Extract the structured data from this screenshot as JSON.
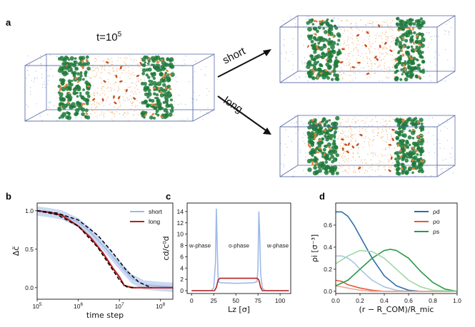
{
  "panel_a": {
    "letter": "a",
    "time_label": "t=10",
    "time_exp": "5",
    "arrow_top_label": "short",
    "arrow_bottom_label": "long"
  },
  "colors": {
    "box_edge": "#5a6ca8",
    "green": "#1f7a3a",
    "orange": "#e0833a",
    "red": "#b82020",
    "light_blue": "#9fb9e8",
    "dark_blue": "#2a6fa8",
    "dot_blue": "#7f9bd0",
    "dot_orange": "#f0a860"
  },
  "chart_data": [
    {
      "id": "b",
      "letter": "b",
      "type": "line",
      "xlabel": "time step",
      "ylabel": "Δc̃",
      "xscale": "log",
      "xlim": [
        100000,
        200000000
      ],
      "ylim": [
        -0.15,
        1.1
      ],
      "xticks": [
        100000,
        1000000,
        10000000,
        100000000
      ],
      "xtick_labels": [
        "10",
        "10",
        "10",
        "10"
      ],
      "xtick_exps": [
        "5",
        "6",
        "7",
        "8"
      ],
      "yticks": [
        0.0,
        0.5,
        1.0
      ],
      "ytick_labels": [
        "0.0",
        "0.5",
        "1.0"
      ],
      "legend": {
        "placement": "top-right",
        "entries": [
          "short",
          "long"
        ]
      },
      "series": [
        {
          "name": "short",
          "color": "#9fb9e8",
          "x": [
            100000,
            200000,
            400000,
            1000000,
            2000000,
            4000000,
            7000000,
            10000000,
            20000000,
            40000000,
            100000000,
            200000000
          ],
          "y": [
            1.0,
            0.98,
            0.95,
            0.85,
            0.72,
            0.55,
            0.4,
            0.3,
            0.12,
            0.04,
            0.02,
            0.01
          ]
        },
        {
          "name": "long",
          "color": "#b82020",
          "x": [
            100000,
            200000,
            400000,
            1000000,
            2000000,
            4000000,
            7000000,
            10000000,
            13000000,
            20000000,
            40000000,
            100000000,
            200000000
          ],
          "y": [
            1.0,
            0.98,
            0.94,
            0.8,
            0.65,
            0.45,
            0.25,
            0.14,
            0.03,
            0.0,
            0.0,
            0.0,
            0.0
          ]
        },
        {
          "name": "fit-short",
          "color": "#000000",
          "dashed": true,
          "x": [
            100000,
            300000,
            1000000,
            3000000,
            7000000,
            15000000,
            30000000,
            60000000
          ],
          "y": [
            1.0,
            0.97,
            0.88,
            0.68,
            0.45,
            0.22,
            0.07,
            0.0
          ]
        },
        {
          "name": "fit-long",
          "color": "#000000",
          "dashed": true,
          "x": [
            100000,
            300000,
            1000000,
            3000000,
            6000000,
            10000000,
            15000000,
            25000000
          ],
          "y": [
            1.0,
            0.95,
            0.8,
            0.52,
            0.28,
            0.1,
            0.01,
            0.0
          ]
        }
      ]
    },
    {
      "id": "c",
      "letter": "c",
      "type": "line",
      "xlabel": "Lz [σ]",
      "ylabel": "cd/c⁰d",
      "xlim": [
        -5,
        112
      ],
      "ylim": [
        -0.5,
        15.5
      ],
      "xticks": [
        0,
        25,
        50,
        75,
        100
      ],
      "xtick_labels": [
        "0",
        "25",
        "50",
        "75",
        "100"
      ],
      "yticks": [
        0,
        2,
        4,
        6,
        8,
        10,
        12,
        14
      ],
      "ytick_labels": [
        "0",
        "2",
        "4",
        "6",
        "8",
        "10",
        "12",
        "14"
      ],
      "annotations": [
        "w-phase",
        "o-phase",
        "w-phase"
      ],
      "series": [
        {
          "name": "light",
          "color": "#9fb9e8",
          "x": [
            0,
            22,
            25,
            27,
            28,
            29,
            30,
            31,
            33,
            50,
            70,
            74,
            75,
            76,
            77,
            78,
            80,
            83,
            110
          ],
          "y": [
            0,
            0,
            0.5,
            5,
            14.5,
            8,
            2,
            1.5,
            1.4,
            1.3,
            1.4,
            1.6,
            4,
            14,
            10,
            3,
            0.5,
            0,
            0
          ]
        },
        {
          "name": "dark",
          "color": "#b82020",
          "x": [
            0,
            26,
            28,
            30,
            32,
            50,
            74,
            76,
            78,
            80,
            110
          ],
          "y": [
            0,
            0,
            0.6,
            1.9,
            2.2,
            2.2,
            2.2,
            1.9,
            0.6,
            0,
            0
          ]
        }
      ]
    },
    {
      "id": "d",
      "letter": "d",
      "type": "line",
      "xlabel": "(r − R_COM)/R_mic",
      "ylabel": "ρi [σ⁻³]",
      "xlim": [
        0,
        1.0
      ],
      "ylim": [
        -0.02,
        0.8
      ],
      "xticks": [
        0.0,
        0.2,
        0.4,
        0.6,
        0.8,
        1.0
      ],
      "xtick_labels": [
        "0.0",
        "0.2",
        "0.4",
        "0.6",
        "0.8",
        "1.0"
      ],
      "yticks": [
        0.0,
        0.2,
        0.4,
        0.6
      ],
      "ytick_labels": [
        "0.0",
        "0.2",
        "0.4",
        "0.6"
      ],
      "legend": {
        "placement": "top-right",
        "entries": [
          "ρd",
          "ρo",
          "ρs"
        ]
      },
      "series": [
        {
          "name": "ρd",
          "color": "#2a6fa8",
          "x": [
            0.0,
            0.05,
            0.1,
            0.15,
            0.2,
            0.3,
            0.4,
            0.5,
            0.6,
            0.7,
            0.8,
            1.0
          ],
          "y": [
            0.72,
            0.72,
            0.68,
            0.6,
            0.5,
            0.3,
            0.14,
            0.05,
            0.01,
            0.0,
            0.0,
            0.0
          ]
        },
        {
          "name": "ρd-light",
          "color": "#a9c4e0",
          "x": [
            0.0,
            0.05,
            0.1,
            0.15,
            0.2,
            0.3,
            0.4,
            0.5,
            0.6,
            0.8,
            1.0
          ],
          "y": [
            0.32,
            0.32,
            0.3,
            0.26,
            0.2,
            0.1,
            0.04,
            0.01,
            0.0,
            0.0,
            0.0
          ]
        },
        {
          "name": "ρo",
          "color": "#e05a3a",
          "x": [
            0.0,
            0.05,
            0.1,
            0.2,
            0.3,
            0.4,
            0.6,
            1.0
          ],
          "y": [
            0.1,
            0.09,
            0.06,
            0.03,
            0.01,
            0.0,
            0.0,
            0.0
          ]
        },
        {
          "name": "ρo-light",
          "color": "#f1a994",
          "x": [
            0.0,
            0.05,
            0.1,
            0.2,
            0.3,
            0.4,
            0.6,
            1.0
          ],
          "y": [
            0.05,
            0.04,
            0.03,
            0.01,
            0.0,
            0.0,
            0.0,
            0.0
          ]
        },
        {
          "name": "ρs",
          "color": "#2a9a48",
          "x": [
            0.0,
            0.1,
            0.2,
            0.3,
            0.4,
            0.45,
            0.5,
            0.6,
            0.7,
            0.8,
            0.9,
            1.0
          ],
          "y": [
            0.05,
            0.1,
            0.2,
            0.3,
            0.37,
            0.38,
            0.37,
            0.3,
            0.18,
            0.08,
            0.02,
            0.0
          ]
        },
        {
          "name": "ρs-light",
          "color": "#9fd8a4",
          "x": [
            0.0,
            0.1,
            0.2,
            0.3,
            0.4,
            0.5,
            0.6,
            0.7,
            0.8,
            1.0
          ],
          "y": [
            0.25,
            0.32,
            0.37,
            0.36,
            0.3,
            0.2,
            0.1,
            0.04,
            0.01,
            0.0
          ]
        }
      ]
    }
  ]
}
